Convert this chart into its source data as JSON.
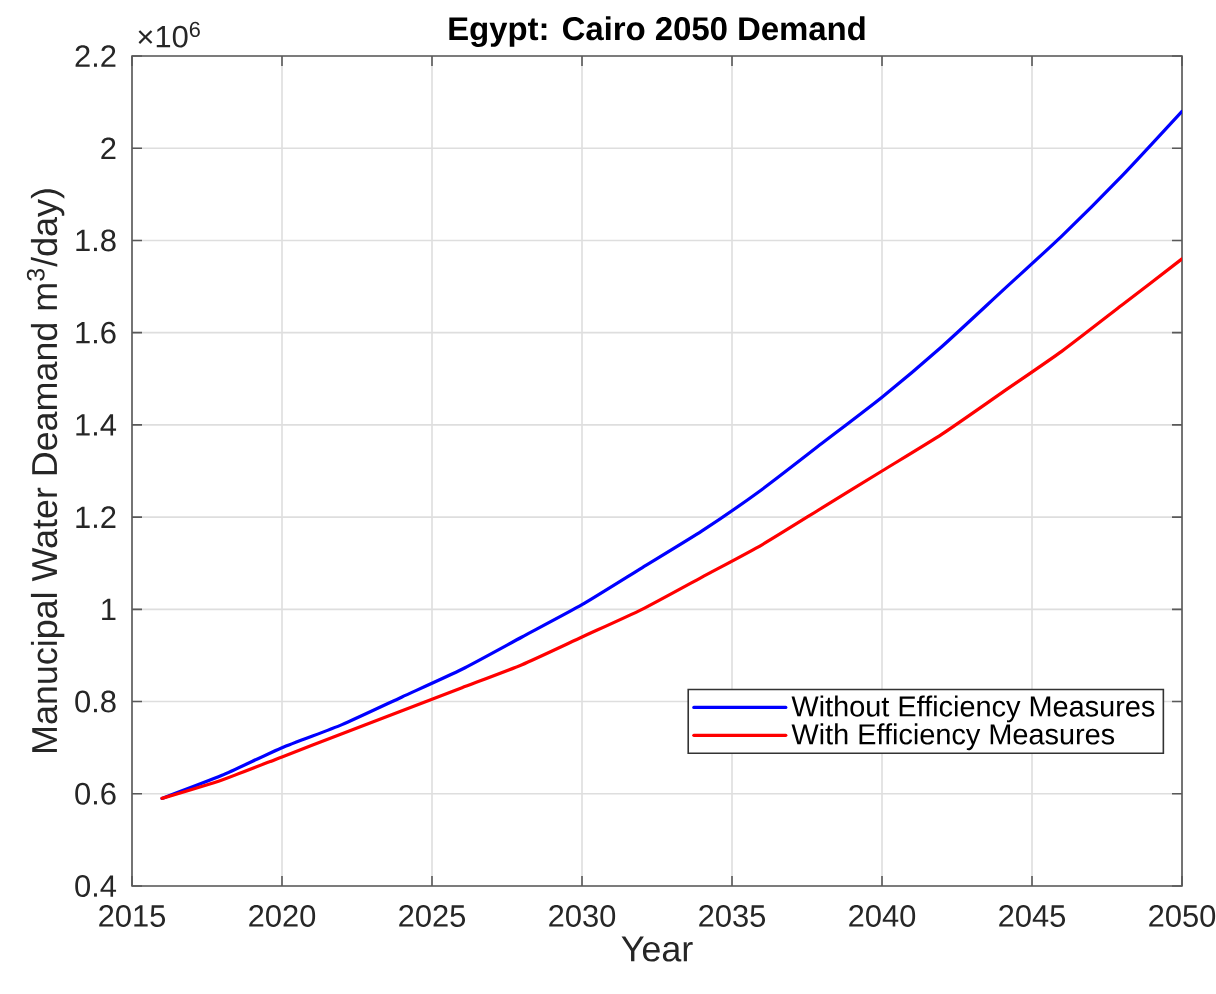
{
  "chart_data": {
    "type": "line",
    "title": "Egypt: Cairo 2050 Demand",
    "xlabel": "Year",
    "ylabel": "Manucipal Water Deamand m$^{3}$/day)",
    "annotations": [
      "×10$^{6}$"
    ],
    "x": [
      2016,
      2018,
      2020,
      2022,
      2024,
      2026,
      2028,
      2030,
      2032,
      2034,
      2036,
      2038,
      2040,
      2042,
      2044,
      2046,
      2048,
      2050
    ],
    "series": [
      {
        "name": "Without Efficiency Measures",
        "color": "#0000ff",
        "values": [
          0.59,
          0.64,
          0.7,
          0.75,
          0.81,
          0.87,
          0.94,
          1.01,
          1.09,
          1.17,
          1.26,
          1.36,
          1.46,
          1.57,
          1.69,
          1.81,
          1.94,
          2.08
        ]
      },
      {
        "name": "With Efficiency Measures",
        "color": "#ff0000",
        "values": [
          0.59,
          0.63,
          0.68,
          0.73,
          0.78,
          0.83,
          0.88,
          0.94,
          1.0,
          1.07,
          1.14,
          1.22,
          1.3,
          1.38,
          1.47,
          1.56,
          1.66,
          1.76
        ]
      }
    ],
    "xlim": [
      2015,
      2050
    ],
    "xticks": [
      2015,
      2020,
      2025,
      2030,
      2035,
      2040,
      2045,
      2050
    ],
    "ylim": [
      0.4,
      2.2
    ],
    "yticks": [
      0.4,
      0.6,
      0.8,
      1,
      1.2,
      1.4,
      1.6,
      1.8,
      2,
      2.2
    ],
    "grid": true,
    "legend": "bottom right"
  }
}
